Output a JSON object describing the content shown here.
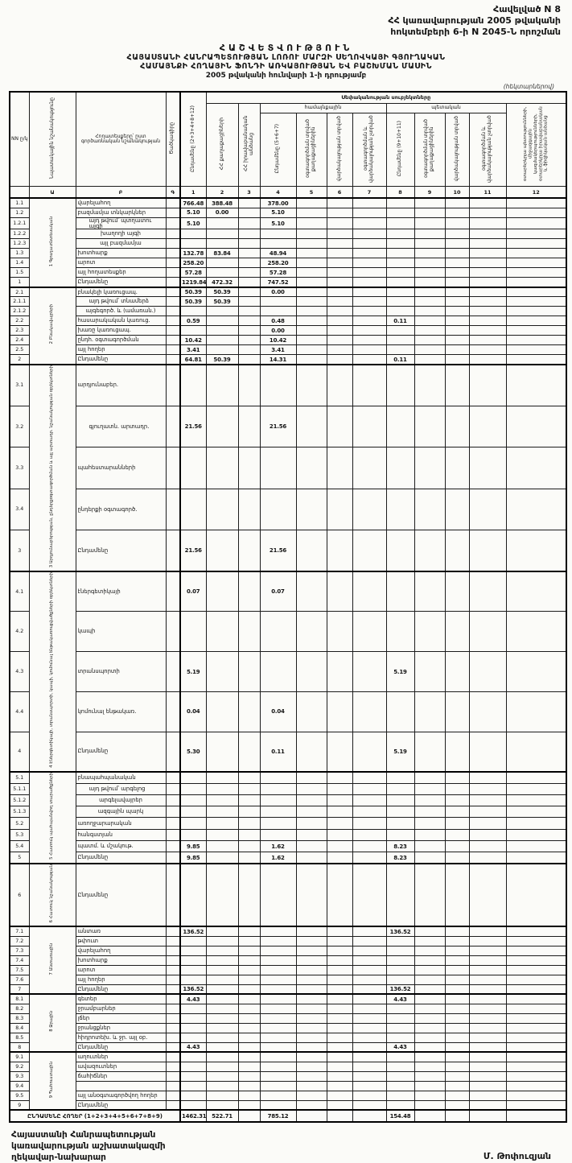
{
  "appendix": {
    "line1": "Հավելված N 8",
    "line2": "ՀՀ կառավարության 2005 թվականի",
    "line3": "հոկտեմբերի 6-ի N 2045-Ն որոշման"
  },
  "title": {
    "l1": "ՀԱՇՎԵՏՎՈՒԹՅՈՒՆ",
    "l2": "ՀԱՅԱՍՏԱՆԻ ՀԱՆՐԱՊԵՏՈՒԹՅԱՆ ԼՈՌՈՒ ՄԱՐԶԻ ՍԵՂՈՎԿԱՅԻ ԳՅՈՒՂԱԿԱՆ",
    "l3": "ՀԱՄԱՅՆՔԻ ՀՈՂԱՅԻՆ ՖՈՆԴԻ ԱՌԿԱՅՈՒԹՅԱՆ ԵՎ ԲԱՇԽՄԱՆ ՄԱՍԻՆ",
    "l4": "2005 թվականի հունվարի 1-ի դրությամբ"
  },
  "units_note": "(հեկտարներով)",
  "table": {
    "header": {
      "nn": "NN ը/կ",
      "col_a": "Նպատակային նշանակությունը",
      "col_b": "Հողատեսքերը՝ ըստ գործառնական նշանակության",
      "col_c": "Ծածկագիրը",
      "col1": "Ընդամենը (2+3+4+8+12)",
      "subjects_banner": "Սեփականության սուբյեկտները",
      "col2": "ՀՀ քաղաքացիների",
      "col3": "ՀՀ իրավաբանական անձանց",
      "group_community": "համայնքային",
      "group_state": "պետական",
      "col4": "Ընդամենը (5+6+7)",
      "col5": "օգտագործման տրված քաղաքացիներին",
      "col6": "վարձակալության տրված",
      "col7": "օգտագործման և վարձակալության չտրված",
      "col8": "Ընդամենը (9+10+11)",
      "col9": "օգտագործման տրված քաղաքացիներին",
      "col10": "վարձակալության տրված",
      "col11": "օգտագործման և վարձակալության չտրված",
      "col12": "օտարերկրյա պետությունների, միջազգային կազմակերպությունների, օտարերկրյա իրավաբանական և ֆիզիկական անձանց",
      "idx": [
        "",
        "Ա",
        "Բ",
        "Գ",
        "1",
        "2",
        "3",
        "4",
        "5",
        "6",
        "7",
        "8",
        "9",
        "10",
        "11",
        "12"
      ]
    },
    "sections": [
      {
        "name": "1 Գյուղատնտեսական",
        "rows": [
          {
            "n": "1.1",
            "l": "վարելահող",
            "v": {
              "c1": "766.48",
              "c2": "388.48",
              "c4": "378.00"
            }
          },
          {
            "n": "1.2",
            "l": "բազմամյա տնկարկներ",
            "v": {
              "c1": "5.10",
              "c2": "0.00",
              "c4": "5.10"
            }
          },
          {
            "n": "1.2.1",
            "l": "այդ թվում՝ պտղատու այգի",
            "a": "i",
            "v": {
              "c1": "5.10",
              "c4": "5.10"
            }
          },
          {
            "n": "1.2.2",
            "l": "խաղողի այգի",
            "a": "c"
          },
          {
            "n": "1.2.3",
            "l": "այլ բազմամյա",
            "a": "c"
          },
          {
            "n": "1.3",
            "l": "խոտհարք",
            "v": {
              "c1": "132.78",
              "c2": "83.84",
              "c4": "48.94"
            }
          },
          {
            "n": "1.4",
            "l": "արոտ",
            "v": {
              "c1": "258.20",
              "c4": "258.20"
            }
          },
          {
            "n": "1.5",
            "l": "այլ հողատեսքեր",
            "v": {
              "c1": "57.28",
              "c4": "57.28"
            }
          },
          {
            "n": "1",
            "l": "Ընդամենը",
            "t": true,
            "v": {
              "c1": "1219.84",
              "c2": "472.32",
              "c4": "747.52"
            }
          }
        ]
      },
      {
        "name": "2 Բնակավայրերի",
        "rows": [
          {
            "n": "2.1",
            "l": "բնակելի կառուցապ.",
            "v": {
              "c1": "50.39",
              "c2": "50.39",
              "c4": "0.00"
            }
          },
          {
            "n": "2.1.1",
            "l": "այդ թվում՝ տնամերձ",
            "a": "i",
            "v": {
              "c1": "50.39",
              "c2": "50.39"
            }
          },
          {
            "n": "2.1.2",
            "l": "այգեգործ. և (ամառան.)",
            "a": "c"
          },
          {
            "n": "2.2",
            "l": "հասարակական կառուց.",
            "v": {
              "c1": "0.59",
              "c4": "0.48",
              "c8": "0.11"
            }
          },
          {
            "n": "2.3",
            "l": "խառը կառուցապ.",
            "v": {
              "c4": "0.00"
            }
          },
          {
            "n": "2.4",
            "l": "ընդհ. օգտագործման",
            "v": {
              "c1": "10.42",
              "c4": "10.42"
            }
          },
          {
            "n": "2.5",
            "l": "այլ հողեր",
            "v": {
              "c1": "3.41",
              "c4": "3.41"
            }
          },
          {
            "n": "2",
            "l": "Ընդամենը",
            "t": true,
            "v": {
              "c1": "64.81",
              "c2": "50.39",
              "c4": "14.31",
              "c8": "0.11"
            }
          }
        ]
      },
      {
        "name": "3 Արդյունաբերության, ընդերքօգտագործման և այլ արտադր. նշանակության օբյեկտների",
        "rows": [
          {
            "n": "3.1",
            "l": "արդյունաբեր."
          },
          {
            "n": "3.2",
            "l": "գյուղատն. արտադր.",
            "a": "i",
            "v": {
              "c1": "21.56",
              "c4": "21.56"
            }
          },
          {
            "n": "3.3",
            "l": "պահեստարանների"
          },
          {
            "n": "3.4",
            "l": "ընդերքի օգտագործ."
          },
          {
            "n": "3",
            "l": "Ընդամենը",
            "t": true,
            "v": {
              "c1": "21.56",
              "c4": "21.56"
            }
          }
        ]
      },
      {
        "name": "4 Էներգետիկայի, տրանսպորտի, կապի, կոմունալ ենթակառուցվածքների օբյեկտների",
        "rows": [
          {
            "n": "4.1",
            "l": "էներգետիկայի",
            "v": {
              "c1": "0.07",
              "c4": "0.07"
            }
          },
          {
            "n": "4.2",
            "l": "կապի"
          },
          {
            "n": "4.3",
            "l": "տրանսպորտի",
            "v": {
              "c1": "5.19",
              "c8": "5.19"
            }
          },
          {
            "n": "4.4",
            "l": "կոմունալ ենթակառ.",
            "v": {
              "c1": "0.04",
              "c4": "0.04"
            }
          },
          {
            "n": "4",
            "l": "Ընդամենը",
            "t": true,
            "v": {
              "c1": "5.30",
              "c4": "0.11",
              "c8": "5.19"
            }
          }
        ]
      },
      {
        "name": "5 Հատուկ պահպանվող տարածքների",
        "rows": [
          {
            "n": "5.1",
            "l": "բնապահպանական"
          },
          {
            "n": "5.1.1",
            "l": "այդ թվում՝ արգելոց",
            "a": "i"
          },
          {
            "n": "5.1.2",
            "l": "արգելավայրեր",
            "a": "c"
          },
          {
            "n": "5.1.3",
            "l": "ազգային պարկ",
            "a": "c"
          },
          {
            "n": "5.2",
            "l": "առողջարարական"
          },
          {
            "n": "5.3",
            "l": "հանգստյան"
          },
          {
            "n": "5.4",
            "l": "պատմ. և մշակութ.",
            "v": {
              "c1": "9.85",
              "c4": "1.62",
              "c8": "8.23"
            }
          },
          {
            "n": "5",
            "l": "Ընդամենը",
            "t": true,
            "v": {
              "c1": "9.85",
              "c4": "1.62",
              "c8": "8.23"
            }
          }
        ]
      },
      {
        "name": "6 Հատուկ նշանակության",
        "tall": true,
        "rows": [
          {
            "n": "6",
            "l": "Ընդամենը"
          }
        ]
      },
      {
        "name": "7 Անտառային",
        "rows": [
          {
            "n": "7.1",
            "l": "անտառ",
            "v": {
              "c1": "136.52",
              "c8": "136.52"
            }
          },
          {
            "n": "7.2",
            "l": "թփուտ"
          },
          {
            "n": "7.3",
            "l": "վարելահող"
          },
          {
            "n": "7.4",
            "l": "խոտհարք"
          },
          {
            "n": "7.5",
            "l": "արոտ"
          },
          {
            "n": "7.6",
            "l": "այլ հողեր"
          },
          {
            "n": "7",
            "l": "Ընդամենը",
            "t": true,
            "v": {
              "c1": "136.52",
              "c8": "136.52"
            }
          }
        ]
      },
      {
        "name": "8 Ջրային",
        "rows": [
          {
            "n": "8.1",
            "l": "գետեր",
            "v": {
              "c1": "4.43",
              "c8": "4.43"
            }
          },
          {
            "n": "8.2",
            "l": "ջրամբարներ"
          },
          {
            "n": "8.3",
            "l": "լճեր"
          },
          {
            "n": "8.4",
            "l": "ջրանցքներ"
          },
          {
            "n": "8.5",
            "l": "հիդրոտեխ. և ջր. այլ օբ."
          },
          {
            "n": "8",
            "l": "Ընդամենը",
            "t": true,
            "v": {
              "c1": "4.43",
              "c8": "4.43"
            }
          }
        ]
      },
      {
        "name": "9 Պահուստային",
        "rows": [
          {
            "n": "9.1",
            "l": "աղուտներ"
          },
          {
            "n": "9.2",
            "l": "ավազուտներ"
          },
          {
            "n": "9.3",
            "l": "ճահիճներ"
          },
          {
            "n": "9.4",
            "l": ""
          },
          {
            "n": "9.5",
            "l": "այլ անօգտագործվող հողեր"
          },
          {
            "n": "9",
            "l": "Ընդամենը",
            "t": true
          }
        ]
      }
    ],
    "grand_total": {
      "label": "ԸՆԴԱՄԵՆԸ ՀՈՂԵՐ (1+2+3+4+5+6+7+8+9)",
      "v": {
        "c1": "1462.31",
        "c2": "522.71",
        "c4": "785.12",
        "c8": "154.48"
      }
    }
  },
  "footer": {
    "org1": "Հայաստանի Հանրապետության",
    "org2": "կառավարության աշխատակազմի",
    "org3": "ղեկավար-նախարար",
    "signer": "Մ. Թոփուզյան"
  }
}
